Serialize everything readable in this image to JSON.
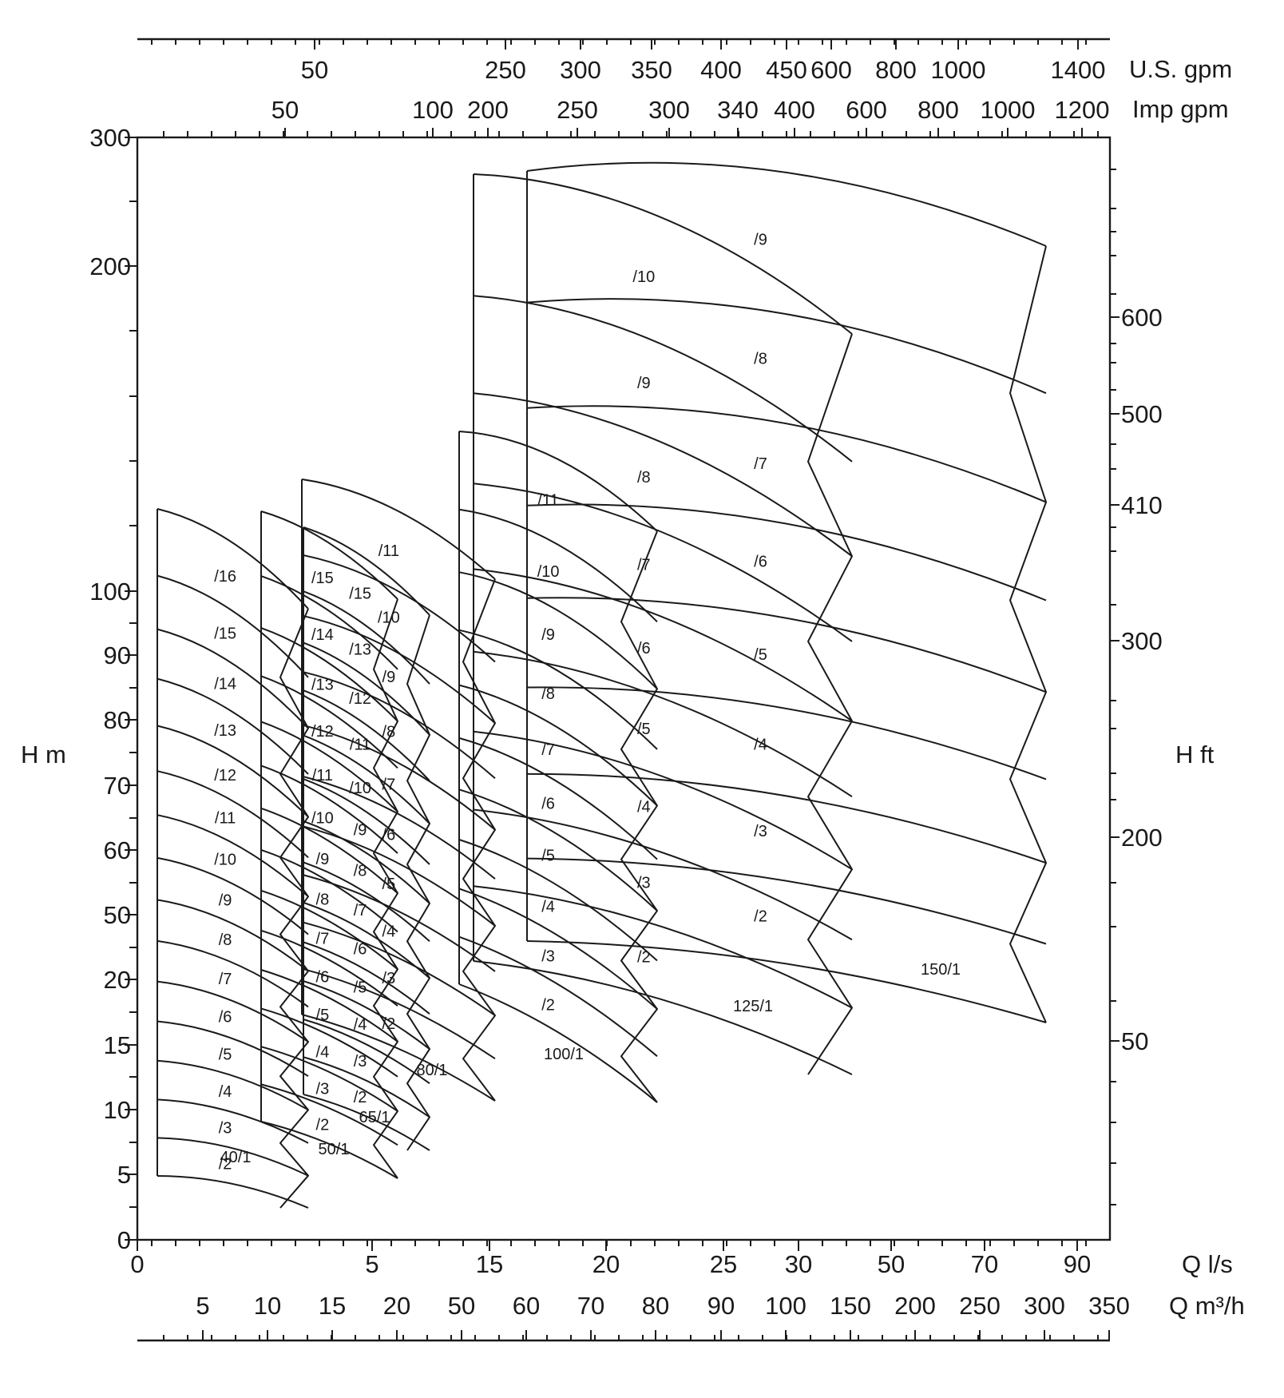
{
  "chart_data": {
    "type": "line",
    "title": "",
    "left_axis": {
      "label": "H  m",
      "ticks": [
        "0",
        "5",
        "10",
        "15",
        "20",
        "50",
        "60",
        "70",
        "80",
        "90",
        "100",
        "200",
        "300"
      ]
    },
    "right_axis": {
      "label": "H  ft",
      "ticks": [
        "50",
        "200",
        "300",
        "410",
        "500",
        "600"
      ]
    },
    "bottom_axis_1": {
      "label": "Q l/s",
      "ticks": [
        "0",
        "5",
        "15",
        "20",
        "25",
        "30",
        "50",
        "70",
        "90"
      ]
    },
    "bottom_axis_2": {
      "label": "Q m³/h",
      "ticks": [
        "5",
        "10",
        "15",
        "20",
        "50",
        "60",
        "70",
        "80",
        "90",
        "100",
        "150",
        "200",
        "250",
        "300",
        "350"
      ]
    },
    "top_axis_1": {
      "label": "U.S.  gpm",
      "ticks": [
        "50",
        "250",
        "300",
        "350",
        "400",
        "450",
        "600",
        "800",
        "1000",
        "1400"
      ]
    },
    "top_axis_2": {
      "label": "Imp  gpm",
      "ticks": [
        "50",
        "100",
        "200",
        "250",
        "300",
        "340",
        "400",
        "600",
        "800",
        "1000",
        "1200"
      ]
    },
    "pump_families": [
      {
        "name": "40/1",
        "impellers": [
          "/2",
          "/3",
          "/4",
          "/5",
          "/6",
          "/7",
          "/8",
          "/9",
          "/10",
          "/11",
          "/12",
          "/13",
          "/14",
          "/15",
          "/16"
        ]
      },
      {
        "name": "50/1",
        "impellers": [
          "/2",
          "/3",
          "/4",
          "/5",
          "/6",
          "/7",
          "/8",
          "/9",
          "/10",
          "/11",
          "/12",
          "/13",
          "/14",
          "/15"
        ]
      },
      {
        "name": "65/1",
        "impellers": [
          "/2",
          "/3",
          "/4",
          "/5",
          "/6",
          "/7",
          "/8",
          "/9",
          "/10",
          "/11",
          "/12",
          "/13",
          "/15"
        ]
      },
      {
        "name": "80/1",
        "impellers": [
          "/2",
          "/3",
          "/4",
          "/5",
          "/6",
          "/7",
          "/8",
          "/9",
          "/10",
          "/11"
        ]
      },
      {
        "name": "100/1",
        "impellers": [
          "/2",
          "/3",
          "/4",
          "/5",
          "/6",
          "/7",
          "/8",
          "/9",
          "/10",
          "/11"
        ]
      },
      {
        "name": "125/1",
        "impellers": [
          "/2",
          "/3",
          "/4",
          "/5",
          "/6",
          "/7",
          "/8",
          "/9",
          "/10"
        ]
      },
      {
        "name": "150/1",
        "impellers": [
          "/2",
          "/3",
          "/4",
          "/5",
          "/6",
          "/7",
          "/8",
          "/9"
        ]
      }
    ],
    "colors": {
      "line": "#1a1a1a",
      "background": "#ffffff"
    }
  }
}
